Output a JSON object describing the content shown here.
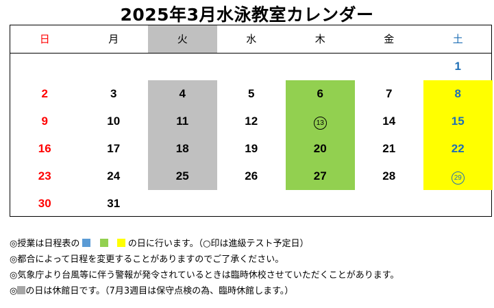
{
  "title": "2025年3月水泳教室カレンダー",
  "colors": {
    "sunday": "#ff0000",
    "saturday": "#1f6fb5",
    "closed_gray": "#c0c0c0",
    "green": "#92d050",
    "yellow": "#ffff00",
    "blue": "#5b9bd5"
  },
  "weekdays": [
    "日",
    "月",
    "火",
    "水",
    "木",
    "金",
    "土"
  ],
  "weeks": [
    [
      "",
      "",
      "",
      "",
      "",
      "",
      "1"
    ],
    [
      "2",
      "3",
      "4",
      "5",
      "6",
      "7",
      "8"
    ],
    [
      "9",
      "10",
      "11",
      "12",
      "13",
      "14",
      "15"
    ],
    [
      "16",
      "17",
      "18",
      "19",
      "20",
      "21",
      "22"
    ],
    [
      "23",
      "24",
      "25",
      "26",
      "27",
      "28",
      "29"
    ],
    [
      "30",
      "31",
      "",
      "",
      "",
      "",
      ""
    ]
  ],
  "circled_days": [
    "13",
    "29"
  ],
  "notes": {
    "line1_prefix": "◎授業は日程表の",
    "line1_suffix": "の日に行います。（○印は進級テスト予定日）",
    "line2": "◎都合によって日程を変更することがありますのでご了承ください。",
    "line3": "◎気象庁より台風等に伴う警報が発令されているときは臨時休校させていただくことがあります。",
    "line4_prefix": "◎",
    "line4_suffix": "の日は休館日です。（7月3週目は保守点検の為、臨時休館します。）"
  }
}
